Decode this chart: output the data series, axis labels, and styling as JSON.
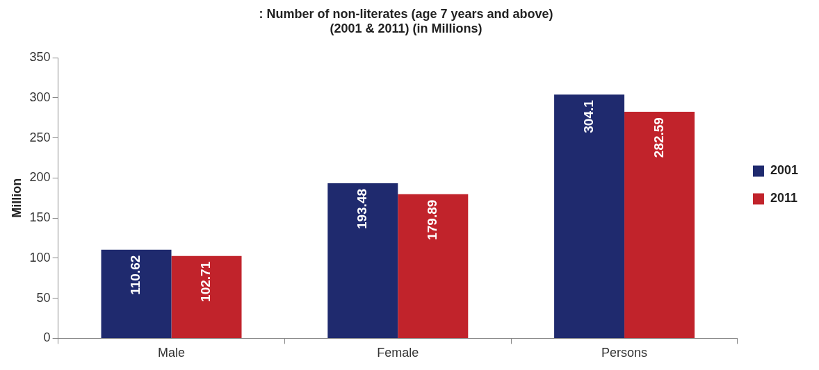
{
  "chart_data": {
    "type": "bar",
    "title": ": Number of non-literates (age 7 years and above)\n(2001 & 2011) (in Millions)",
    "ylabel": "Million",
    "categories": [
      "Male",
      "Female",
      "Persons"
    ],
    "series": [
      {
        "name": "2001",
        "color": "#1f2a6e",
        "values": [
          110.62,
          193.48,
          304.1
        ]
      },
      {
        "name": "2011",
        "color": "#c1232b",
        "values": [
          102.71,
          179.89,
          282.59
        ]
      }
    ],
    "ylim": [
      0,
      350
    ],
    "yticks": [
      0,
      50,
      100,
      150,
      200,
      250,
      300,
      350
    ],
    "grid": false,
    "legend": "right",
    "data_labels": true
  }
}
